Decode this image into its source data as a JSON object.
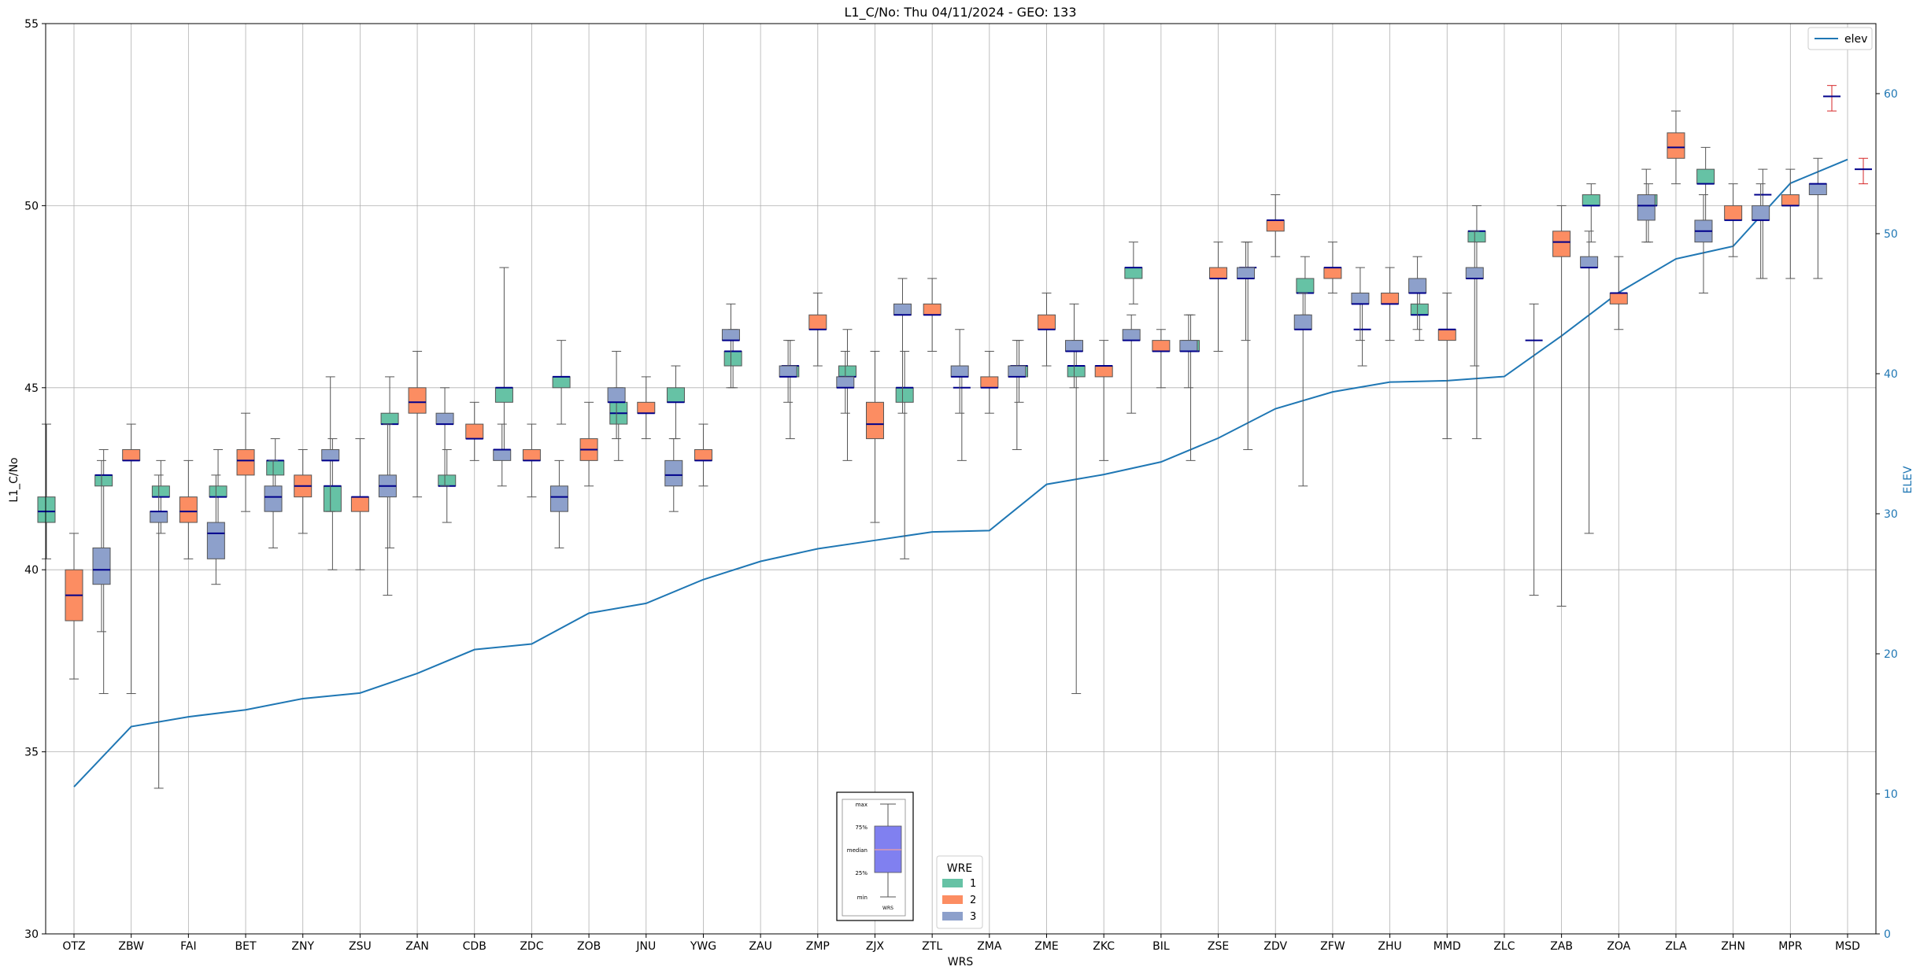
{
  "chart_data": {
    "type": "box",
    "title": "L1_C/No: Thu 04/11/2024 - GEO: 133",
    "xlabel": "WRS",
    "ylabel": "L1_C/No",
    "ylabel_right": "ELEV",
    "ylim": [
      30,
      55
    ],
    "ylim_right": [
      0,
      65
    ],
    "yticks": [
      30,
      35,
      40,
      45,
      50,
      55
    ],
    "yticks_right": [
      0,
      10,
      20,
      30,
      40,
      50,
      60
    ],
    "grid": true,
    "legend_series_title": "WRE",
    "legend_series_placement": "bottom-center",
    "legend_line_placement": "top-right",
    "colors": {
      "1": "#66c2a5",
      "2": "#fc8d62",
      "3": "#8da0cb",
      "median": "#00008b",
      "elev": "#1f77b4",
      "msd": "#d62728"
    },
    "categories": [
      "OTZ",
      "ZBW",
      "FAI",
      "BET",
      "ZNY",
      "ZSU",
      "ZAN",
      "CDB",
      "ZDC",
      "ZOB",
      "JNU",
      "YWG",
      "ZAU",
      "ZMP",
      "ZJX",
      "ZTL",
      "ZMA",
      "ZME",
      "ZKC",
      "BIL",
      "ZSE",
      "ZDV",
      "ZFW",
      "ZHU",
      "MMD",
      "ZLC",
      "ZAB",
      "ZOA",
      "ZLA",
      "ZHN",
      "MPR",
      "MSD"
    ],
    "series": [
      {
        "name": "1",
        "boxes": [
          {
            "cat": "OTZ",
            "min": 40.3,
            "q1": 41.3,
            "median": 41.6,
            "q3": 42.0,
            "max": 44.0
          },
          {
            "cat": "ZBW",
            "min": 36.6,
            "q1": 42.3,
            "median": 42.6,
            "q3": 42.6,
            "max": 43.3
          },
          {
            "cat": "FAI",
            "min": 41.0,
            "q1": 42.0,
            "median": 42.0,
            "q3": 42.3,
            "max": 43.0
          },
          {
            "cat": "BET",
            "min": 41.0,
            "q1": 42.0,
            "median": 42.0,
            "q3": 42.3,
            "max": 43.3
          },
          {
            "cat": "ZNY",
            "min": 41.6,
            "q1": 42.6,
            "median": 43.0,
            "q3": 43.0,
            "max": 43.6
          },
          {
            "cat": "ZSU",
            "min": 40.0,
            "q1": 41.6,
            "median": 42.3,
            "q3": 42.3,
            "max": 43.6
          },
          {
            "cat": "ZAN",
            "min": 40.6,
            "q1": 44.0,
            "median": 44.0,
            "q3": 44.3,
            "max": 45.3
          },
          {
            "cat": "CDB",
            "min": 41.3,
            "q1": 42.3,
            "median": 42.3,
            "q3": 42.6,
            "max": 43.3
          },
          {
            "cat": "ZDC",
            "min": 43.3,
            "q1": 44.6,
            "median": 45.0,
            "q3": 45.0,
            "max": 48.3
          },
          {
            "cat": "ZOB",
            "min": 44.0,
            "q1": 45.0,
            "median": 45.3,
            "q3": 45.3,
            "max": 46.3
          },
          {
            "cat": "JNU",
            "min": 43.0,
            "q1": 44.0,
            "median": 44.3,
            "q3": 44.6,
            "max": 45.0
          },
          {
            "cat": "YWG",
            "min": 43.6,
            "q1": 44.6,
            "median": 44.6,
            "q3": 45.0,
            "max": 45.6
          },
          {
            "cat": "ZAU",
            "min": 45.0,
            "q1": 45.6,
            "median": 46.0,
            "q3": 46.0,
            "max": 46.6
          },
          {
            "cat": "ZMP",
            "min": 43.6,
            "q1": 45.3,
            "median": 45.6,
            "q3": 45.6,
            "max": 46.3
          },
          {
            "cat": "ZJX",
            "min": 43.0,
            "q1": 45.3,
            "median": 45.3,
            "q3": 45.6,
            "max": 46.6
          },
          {
            "cat": "ZTL",
            "min": 40.3,
            "q1": 44.6,
            "median": 45.0,
            "q3": 45.0,
            "max": 46.0
          },
          {
            "cat": "ZMA",
            "min": 43.0,
            "q1": 45.0,
            "median": 45.0,
            "q3": 45.0,
            "max": 45.6
          },
          {
            "cat": "ZME",
            "min": 44.6,
            "q1": 45.3,
            "median": 45.6,
            "q3": 45.6,
            "max": 46.3
          },
          {
            "cat": "ZKC",
            "min": 36.6,
            "q1": 45.3,
            "median": 45.6,
            "q3": 45.6,
            "max": 46.3
          },
          {
            "cat": "BIL",
            "min": 47.3,
            "q1": 48.0,
            "median": 48.3,
            "q3": 48.3,
            "max": 49.0
          },
          {
            "cat": "ZSE",
            "min": 43.0,
            "q1": 46.0,
            "median": 46.0,
            "q3": 46.3,
            "max": 47.0
          },
          {
            "cat": "ZDV",
            "min": 43.3,
            "q1": 48.3,
            "median": 48.3,
            "q3": 48.3,
            "max": 49.0
          },
          {
            "cat": "ZFW",
            "min": 47.0,
            "q1": 47.6,
            "median": 47.6,
            "q3": 48.0,
            "max": 48.6
          },
          {
            "cat": "ZHU",
            "min": 45.6,
            "q1": 46.6,
            "median": 46.6,
            "q3": 46.6,
            "max": 47.6
          },
          {
            "cat": "MMD",
            "min": 46.3,
            "q1": 47.0,
            "median": 47.0,
            "q3": 47.3,
            "max": 48.0
          },
          {
            "cat": "ZLC",
            "min": 43.6,
            "q1": 49.0,
            "median": 49.3,
            "q3": 49.3,
            "max": 50.0
          },
          {
            "cat": "ZAB",
            "min": 39.3,
            "q1": 46.3,
            "median": 46.3,
            "q3": 46.3,
            "max": 47.3
          },
          {
            "cat": "ZOA",
            "min": 49.0,
            "q1": 50.0,
            "median": 50.0,
            "q3": 50.3,
            "max": 50.6
          },
          {
            "cat": "ZLA",
            "min": 49.0,
            "q1": 50.0,
            "median": 50.0,
            "q3": 50.3,
            "max": 50.6
          },
          {
            "cat": "ZHN",
            "min": 49.6,
            "q1": 50.6,
            "median": 50.6,
            "q3": 51.0,
            "max": 51.6
          },
          {
            "cat": "MPR",
            "min": 48.0,
            "q1": 50.3,
            "median": 50.3,
            "q3": 50.3,
            "max": 51.0
          }
        ]
      },
      {
        "name": "2",
        "boxes": [
          {
            "cat": "OTZ",
            "min": 37.0,
            "q1": 38.6,
            "median": 39.3,
            "q3": 40.0,
            "max": 41.0
          },
          {
            "cat": "ZBW",
            "min": 36.6,
            "q1": 43.0,
            "median": 43.0,
            "q3": 43.3,
            "max": 44.0
          },
          {
            "cat": "FAI",
            "min": 40.3,
            "q1": 41.3,
            "median": 41.6,
            "q3": 42.0,
            "max": 43.0
          },
          {
            "cat": "BET",
            "min": 41.6,
            "q1": 42.6,
            "median": 43.0,
            "q3": 43.3,
            "max": 44.3
          },
          {
            "cat": "ZNY",
            "min": 41.0,
            "q1": 42.0,
            "median": 42.3,
            "q3": 42.6,
            "max": 43.3
          },
          {
            "cat": "ZSU",
            "min": 40.0,
            "q1": 41.6,
            "median": 42.0,
            "q3": 42.0,
            "max": 43.6
          },
          {
            "cat": "ZAN",
            "min": 42.0,
            "q1": 44.3,
            "median": 44.6,
            "q3": 45.0,
            "max": 46.0
          },
          {
            "cat": "CDB",
            "min": 43.0,
            "q1": 43.6,
            "median": 43.6,
            "q3": 44.0,
            "max": 44.6
          },
          {
            "cat": "ZDC",
            "min": 42.0,
            "q1": 43.0,
            "median": 43.0,
            "q3": 43.3,
            "max": 44.0
          },
          {
            "cat": "ZOB",
            "min": 42.3,
            "q1": 43.0,
            "median": 43.3,
            "q3": 43.6,
            "max": 44.6
          },
          {
            "cat": "JNU",
            "min": 43.6,
            "q1": 44.3,
            "median": 44.3,
            "q3": 44.6,
            "max": 45.3
          },
          {
            "cat": "YWG",
            "min": 42.3,
            "q1": 43.0,
            "median": 43.0,
            "q3": 43.3,
            "max": 44.0
          },
          {
            "cat": "ZMP",
            "min": 45.6,
            "q1": 46.6,
            "median": 46.6,
            "q3": 47.0,
            "max": 47.6
          },
          {
            "cat": "ZJX",
            "min": 41.3,
            "q1": 43.6,
            "median": 44.0,
            "q3": 44.6,
            "max": 46.0
          },
          {
            "cat": "ZTL",
            "min": 46.0,
            "q1": 47.0,
            "median": 47.0,
            "q3": 47.3,
            "max": 48.0
          },
          {
            "cat": "ZMA",
            "min": 44.3,
            "q1": 45.0,
            "median": 45.0,
            "q3": 45.3,
            "max": 46.0
          },
          {
            "cat": "ZME",
            "min": 45.6,
            "q1": 46.6,
            "median": 46.6,
            "q3": 47.0,
            "max": 47.6
          },
          {
            "cat": "ZKC",
            "min": 43.0,
            "q1": 45.3,
            "median": 45.6,
            "q3": 45.6,
            "max": 46.3
          },
          {
            "cat": "BIL",
            "min": 45.0,
            "q1": 46.0,
            "median": 46.0,
            "q3": 46.3,
            "max": 46.6
          },
          {
            "cat": "ZSE",
            "min": 46.0,
            "q1": 48.0,
            "median": 48.0,
            "q3": 48.3,
            "max": 49.0
          },
          {
            "cat": "ZDV",
            "min": 48.6,
            "q1": 49.3,
            "median": 49.6,
            "q3": 49.6,
            "max": 50.3
          },
          {
            "cat": "ZFW",
            "min": 47.6,
            "q1": 48.0,
            "median": 48.3,
            "q3": 48.3,
            "max": 49.0
          },
          {
            "cat": "ZHU",
            "min": 46.3,
            "q1": 47.3,
            "median": 47.3,
            "q3": 47.6,
            "max": 48.3
          },
          {
            "cat": "MMD",
            "min": 43.6,
            "q1": 46.3,
            "median": 46.6,
            "q3": 46.6,
            "max": 47.6
          },
          {
            "cat": "ZAB",
            "min": 39.0,
            "q1": 48.6,
            "median": 49.0,
            "q3": 49.3,
            "max": 50.0
          },
          {
            "cat": "ZOA",
            "min": 46.6,
            "q1": 47.3,
            "median": 47.6,
            "q3": 47.6,
            "max": 48.6
          },
          {
            "cat": "ZLA",
            "min": 50.6,
            "q1": 51.3,
            "median": 51.6,
            "q3": 52.0,
            "max": 52.6
          },
          {
            "cat": "ZHN",
            "min": 48.6,
            "q1": 49.6,
            "median": 49.6,
            "q3": 50.0,
            "max": 50.6
          },
          {
            "cat": "MPR",
            "min": 48.0,
            "q1": 50.0,
            "median": 50.0,
            "q3": 50.3,
            "max": 51.0
          }
        ]
      },
      {
        "name": "3",
        "boxes": [
          {
            "cat": "OTZ",
            "min": 38.3,
            "q1": 39.6,
            "median": 40.0,
            "q3": 40.6,
            "max": 43.0
          },
          {
            "cat": "ZBW",
            "min": 34.0,
            "q1": 41.3,
            "median": 41.6,
            "q3": 41.6,
            "max": 42.6
          },
          {
            "cat": "FAI",
            "min": 39.6,
            "q1": 40.3,
            "median": 41.0,
            "q3": 41.3,
            "max": 42.6
          },
          {
            "cat": "BET",
            "min": 40.6,
            "q1": 41.6,
            "median": 42.0,
            "q3": 42.3,
            "max": 43.0
          },
          {
            "cat": "ZNY",
            "min": 41.6,
            "q1": 43.0,
            "median": 43.0,
            "q3": 43.3,
            "max": 45.3
          },
          {
            "cat": "ZSU",
            "min": 39.3,
            "q1": 42.0,
            "median": 42.3,
            "q3": 42.6,
            "max": 44.0
          },
          {
            "cat": "ZAN",
            "min": 42.3,
            "q1": 44.0,
            "median": 44.0,
            "q3": 44.3,
            "max": 45.0
          },
          {
            "cat": "CDB",
            "min": 42.3,
            "q1": 43.0,
            "median": 43.3,
            "q3": 43.3,
            "max": 44.0
          },
          {
            "cat": "ZDC",
            "min": 40.6,
            "q1": 41.6,
            "median": 42.0,
            "q3": 42.3,
            "max": 43.0
          },
          {
            "cat": "ZOB",
            "min": 43.6,
            "q1": 44.6,
            "median": 44.6,
            "q3": 45.0,
            "max": 46.0
          },
          {
            "cat": "JNU",
            "min": 41.6,
            "q1": 42.3,
            "median": 42.6,
            "q3": 43.0,
            "max": 43.6
          },
          {
            "cat": "YWG",
            "min": 45.0,
            "q1": 46.3,
            "median": 46.3,
            "q3": 46.6,
            "max": 47.3
          },
          {
            "cat": "ZAU",
            "min": 44.6,
            "q1": 45.3,
            "median": 45.3,
            "q3": 45.6,
            "max": 46.3
          },
          {
            "cat": "ZMP",
            "min": 44.3,
            "q1": 45.0,
            "median": 45.0,
            "q3": 45.3,
            "max": 46.0
          },
          {
            "cat": "ZJX",
            "min": 44.3,
            "q1": 47.0,
            "median": 47.0,
            "q3": 47.3,
            "max": 48.0
          },
          {
            "cat": "ZTL",
            "min": 44.3,
            "q1": 45.3,
            "median": 45.3,
            "q3": 45.6,
            "max": 46.6
          },
          {
            "cat": "ZMA",
            "min": 43.3,
            "q1": 45.3,
            "median": 45.3,
            "q3": 45.6,
            "max": 46.3
          },
          {
            "cat": "ZME",
            "min": 45.0,
            "q1": 46.0,
            "median": 46.0,
            "q3": 46.3,
            "max": 47.3
          },
          {
            "cat": "ZKC",
            "min": 44.3,
            "q1": 46.3,
            "median": 46.3,
            "q3": 46.6,
            "max": 47.0
          },
          {
            "cat": "BIL",
            "min": 45.0,
            "q1": 46.0,
            "median": 46.0,
            "q3": 46.3,
            "max": 47.0
          },
          {
            "cat": "ZSE",
            "min": 46.3,
            "q1": 48.0,
            "median": 48.0,
            "q3": 48.3,
            "max": 49.0
          },
          {
            "cat": "ZDV",
            "min": 42.3,
            "q1": 46.6,
            "median": 46.6,
            "q3": 47.0,
            "max": 47.6
          },
          {
            "cat": "ZFW",
            "min": 46.3,
            "q1": 47.3,
            "median": 47.3,
            "q3": 47.6,
            "max": 48.3
          },
          {
            "cat": "ZHU",
            "min": 46.6,
            "q1": 47.6,
            "median": 47.6,
            "q3": 48.0,
            "max": 48.6
          },
          {
            "cat": "MMD",
            "min": 45.6,
            "q1": 48.0,
            "median": 48.0,
            "q3": 48.3,
            "max": 49.3
          },
          {
            "cat": "ZAB",
            "min": 41.0,
            "q1": 48.3,
            "median": 48.3,
            "q3": 48.6,
            "max": 49.3
          },
          {
            "cat": "ZOA",
            "min": 49.0,
            "q1": 49.6,
            "median": 50.0,
            "q3": 50.3,
            "max": 51.0
          },
          {
            "cat": "ZLA",
            "min": 47.6,
            "q1": 49.0,
            "median": 49.3,
            "q3": 49.6,
            "max": 50.3
          },
          {
            "cat": "ZHN",
            "min": 48.0,
            "q1": 49.6,
            "median": 49.6,
            "q3": 50.0,
            "max": 50.6
          },
          {
            "cat": "MPR",
            "min": 48.0,
            "q1": 50.3,
            "median": 50.6,
            "q3": 50.6,
            "max": 51.3
          }
        ]
      }
    ],
    "msd_boxes": [
      {
        "cat": "MSD",
        "min": 52.6,
        "q1": 53.0,
        "median": 53.0,
        "q3": 53.0,
        "max": 53.3
      },
      {
        "cat": "MSD",
        "min": 50.6,
        "q1": 51.0,
        "median": 51.0,
        "q3": 51.0,
        "max": 51.3
      }
    ],
    "elev_series": {
      "name": "elev",
      "values": [
        10.5,
        14.8,
        15.5,
        16.0,
        16.8,
        17.2,
        18.6,
        20.3,
        20.7,
        22.9,
        23.6,
        25.3,
        26.6,
        27.5,
        28.1,
        28.7,
        28.8,
        32.1,
        32.8,
        33.7,
        35.4,
        37.5,
        38.7,
        39.4,
        39.5,
        39.8,
        42.7,
        45.8,
        48.2,
        49.1,
        53.6,
        55.3
      ]
    },
    "legend_series_entries": [
      "1",
      "2",
      "3"
    ],
    "inset": {
      "labels": [
        "max",
        "75%",
        "median",
        "25%",
        "min"
      ],
      "caption": "WRS"
    }
  }
}
